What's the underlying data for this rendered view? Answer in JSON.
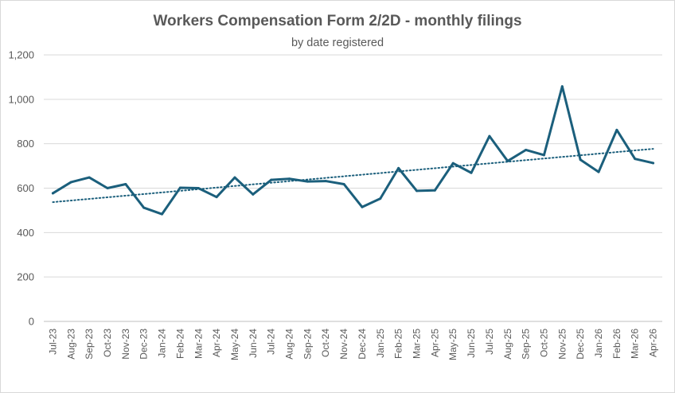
{
  "chart_data": {
    "type": "line",
    "title": "Workers Compensation Form 2/2D - monthly filings",
    "subtitle": "by date registered",
    "xlabel": "",
    "ylabel": "",
    "ylim": [
      0,
      1200
    ],
    "yticks": [
      "0",
      "200",
      "400",
      "600",
      "800",
      "1,000",
      "1,200"
    ],
    "ytick_values": [
      0,
      200,
      400,
      600,
      800,
      1000,
      1200
    ],
    "grid": true,
    "legend": "none",
    "categories": [
      "Jul-23",
      "Aug-23",
      "Sep-23",
      "Oct-23",
      "Nov-23",
      "Dec-23",
      "Jan-24",
      "Feb-24",
      "Mar-24",
      "Apr-24",
      "May-24",
      "Jun-24",
      "Jul-24",
      "Aug-24",
      "Sep-24",
      "Oct-24",
      "Nov-24",
      "Dec-24",
      "Jan-25",
      "Feb-25",
      "Mar-25",
      "Apr-25",
      "May-25",
      "Jun-25",
      "Jul-25",
      "Aug-25",
      "Sep-25",
      "Oct-25",
      "Nov-25",
      "Dec-25",
      "Jan-26",
      "Feb-26",
      "Mar-26",
      "Apr-26"
    ],
    "series": [
      {
        "values": [
          577,
          627,
          648,
          600,
          618,
          512,
          483,
          602,
          600,
          560,
          648,
          572,
          637,
          642,
          630,
          632,
          618,
          515,
          553,
          690,
          588,
          590,
          712,
          669,
          834,
          722,
          772,
          749,
          1058,
          728,
          673,
          862,
          732,
          713
        ],
        "color": "#1b5f7c"
      }
    ],
    "trendline": {
      "type": "linear",
      "start": 537,
      "end": 777,
      "color": "#1b5f7c",
      "style": "dotted"
    }
  }
}
